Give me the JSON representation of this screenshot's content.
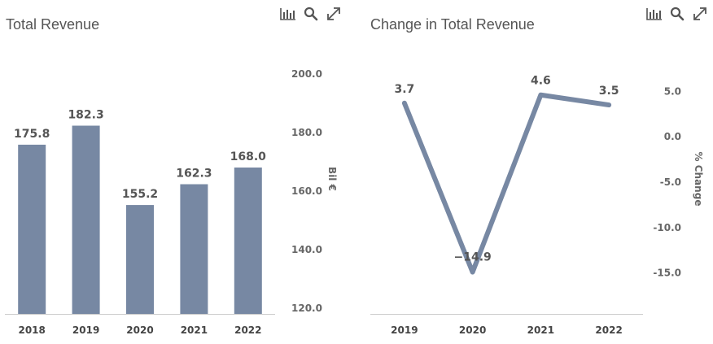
{
  "toolbar": {
    "icons": [
      "bar-chart-icon",
      "search-icon",
      "expand-icon"
    ]
  },
  "chart_data": [
    {
      "type": "bar",
      "title": "Total Revenue",
      "categories": [
        "2018",
        "2019",
        "2020",
        "2021",
        "2022"
      ],
      "values": [
        175.8,
        182.3,
        155.2,
        162.3,
        168.0
      ],
      "data_labels": [
        "175.8",
        "182.3",
        "155.2",
        "162.3",
        "168.0"
      ],
      "ylabel": "Bil €",
      "yaxis_position": "right",
      "yticks": [
        "120.0",
        "140.0",
        "160.0",
        "180.0",
        "200.0"
      ],
      "ylim": [
        118,
        208
      ],
      "grid": false,
      "legend": "none",
      "color": "#7788a3"
    },
    {
      "type": "line",
      "title": "Change in Total Revenue",
      "categories": [
        "2019",
        "2020",
        "2021",
        "2022"
      ],
      "values": [
        3.7,
        -14.9,
        4.6,
        3.5
      ],
      "data_labels": [
        "3.7",
        "−14.9",
        "4.6",
        "3.5"
      ],
      "ylabel": "% Change",
      "yaxis_position": "right",
      "yticks": [
        "5.0",
        "0.0",
        "-5.0",
        "-10.0",
        "-15.0"
      ],
      "ylim": [
        -19.5,
        9.5
      ],
      "grid": false,
      "legend": "none",
      "color": "#7788a3"
    }
  ]
}
